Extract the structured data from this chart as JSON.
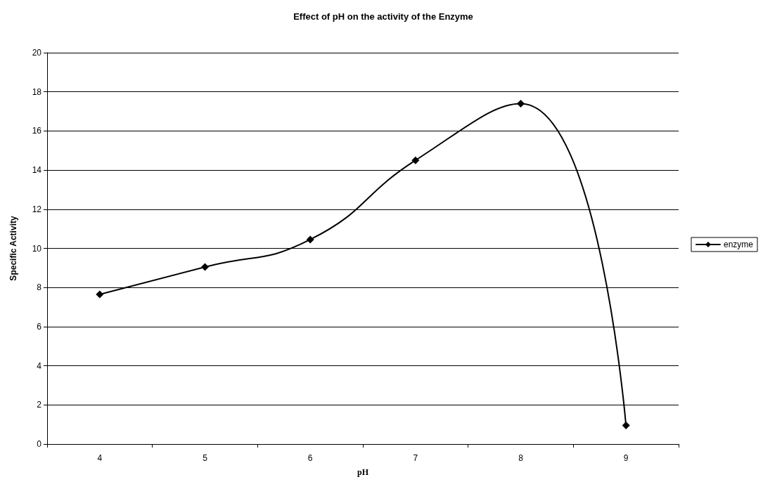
{
  "chart_data": {
    "type": "line",
    "title": "Effect of pH on the activity of the Enzyme",
    "xlabel": "pH",
    "ylabel": "Specific Activity",
    "categories": [
      "4",
      "5",
      "6",
      "7",
      "8",
      "9"
    ],
    "series": [
      {
        "name": "enzyme",
        "color": "#000000",
        "values": [
          7.65,
          9.05,
          10.45,
          14.5,
          17.4,
          0.95
        ]
      }
    ],
    "ylim": [
      0,
      20
    ],
    "yticks": [
      0,
      2,
      4,
      6,
      8,
      10,
      12,
      14,
      16,
      18,
      20
    ],
    "grid": "y",
    "legend": "right",
    "marker": "diamond",
    "line_style": "solid"
  }
}
